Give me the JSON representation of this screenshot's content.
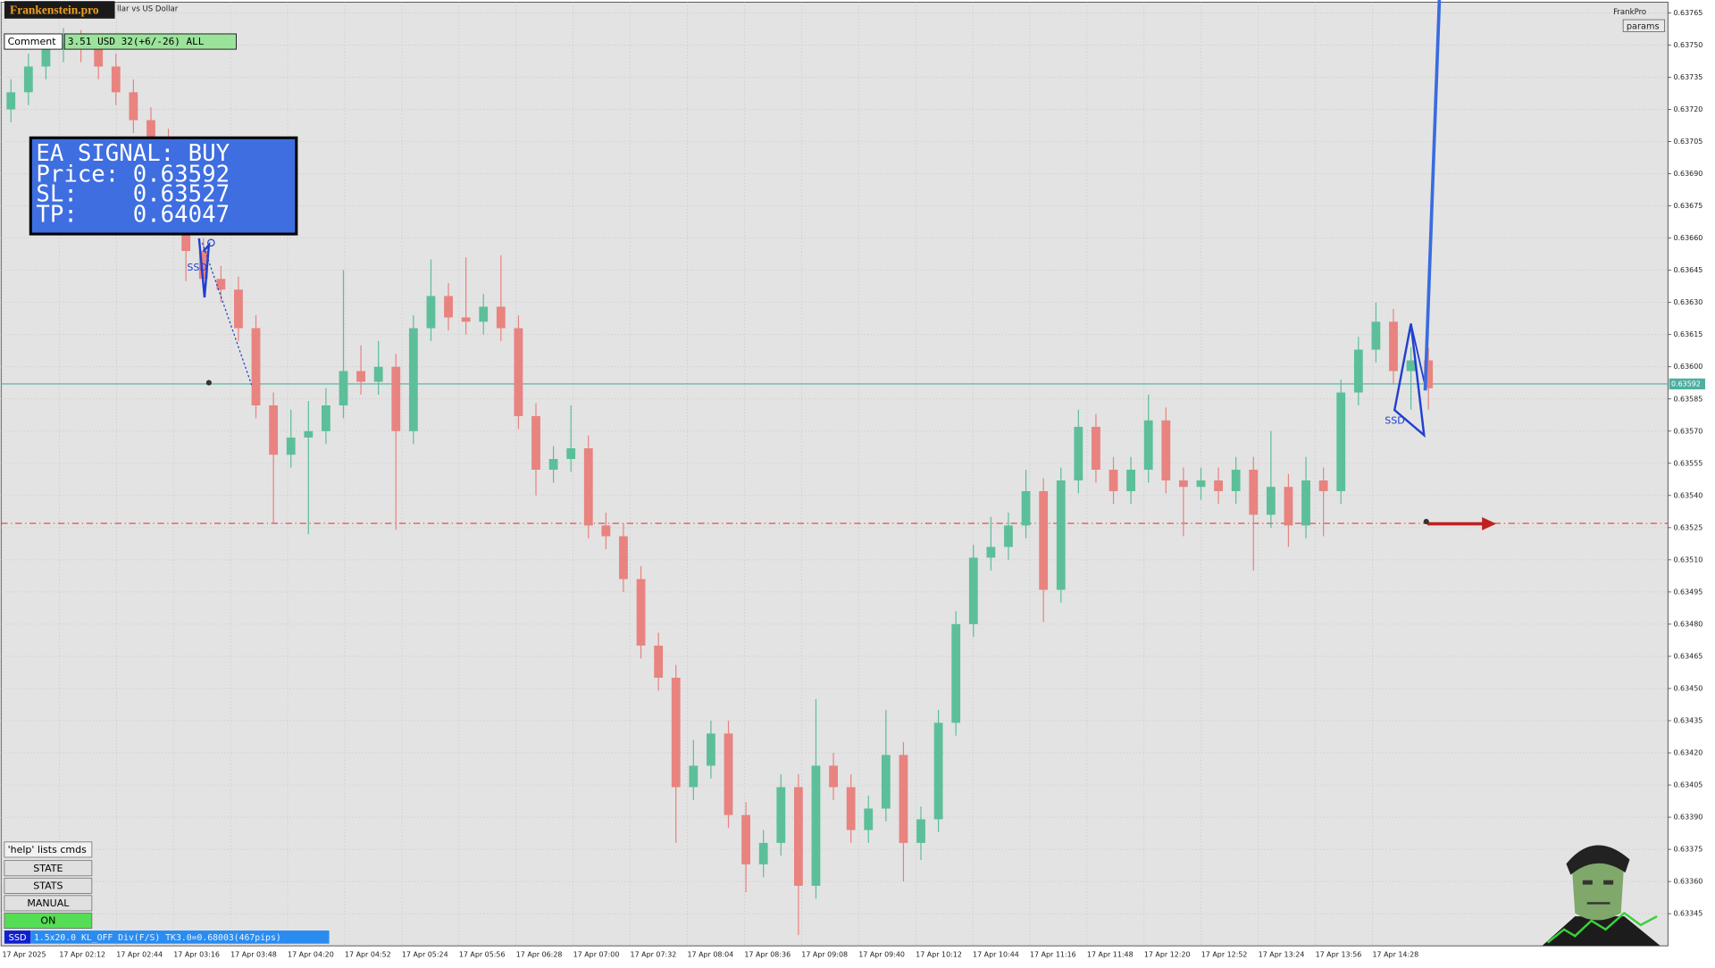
{
  "header": {
    "logo": "Frankenstein.pro",
    "symbol": "llar vs US Dollar",
    "comment_label": "Comment",
    "comment": "3.51 USD 32(+6/-26) ALL",
    "brand": "FrankPro",
    "params": "params"
  },
  "signal": {
    "title": "EA SIGNAL: BUY",
    "lines": [
      "Price: 0.63592",
      "SL:    0.63527",
      "TP:    0.64047"
    ]
  },
  "pattern_labels": [
    "SSD",
    "SSD"
  ],
  "buttons": [
    "'help' lists cmds",
    "STATE",
    "STATS",
    "MANUAL",
    "ON"
  ],
  "status": {
    "tag": "SSD",
    "text": "1.5x20.0 KL_OFF Div(F/S) TK3.0=0.68003(467pips)"
  },
  "chart_data": {
    "type": "candlestick",
    "x_labels": [
      "17 Apr 2025",
      "17 Apr 02:12",
      "17 Apr 02:44",
      "17 Apr 03:16",
      "17 Apr 03:48",
      "17 Apr 04:20",
      "17 Apr 04:52",
      "17 Apr 05:24",
      "17 Apr 05:56",
      "17 Apr 06:28",
      "17 Apr 07:00",
      "17 Apr 07:32",
      "17 Apr 08:04",
      "17 Apr 08:36",
      "17 Apr 09:08",
      "17 Apr 09:40",
      "17 Apr 10:12",
      "17 Apr 10:44",
      "17 Apr 11:16",
      "17 Apr 11:48",
      "17 Apr 12:20",
      "17 Apr 12:52",
      "17 Apr 13:24",
      "17 Apr 13:56",
      "17 Apr 14:28"
    ],
    "open": [
      0.6372,
      0.63728,
      0.6374,
      0.63748,
      0.63751,
      0.63748,
      0.6374,
      0.63728,
      0.63715,
      0.63705,
      0.63684,
      0.63654,
      0.63641,
      0.63636,
      0.63618,
      0.63582,
      0.63559,
      0.63567,
      0.6357,
      0.63582,
      0.63598,
      0.63593,
      0.636,
      0.6357,
      0.63618,
      0.63633,
      0.63623,
      0.63621,
      0.63628,
      0.63618,
      0.63577,
      0.63552,
      0.63557,
      0.63562,
      0.63526,
      0.63521,
      0.63501,
      0.6347,
      0.63455,
      0.63404,
      0.63414,
      0.63429,
      0.63391,
      0.63368,
      0.63378,
      0.63404,
      0.63358,
      0.63414,
      0.63404,
      0.63384,
      0.63394,
      0.63419,
      0.63378,
      0.63389,
      0.63434,
      0.6348,
      0.63511,
      0.63516,
      0.63526,
      0.63542,
      0.63496,
      0.63547,
      0.63572,
      0.63552,
      0.63542,
      0.63552,
      0.63575,
      0.63547,
      0.63544,
      0.63547,
      0.63542,
      0.63552,
      0.63531,
      0.63544,
      0.63526,
      0.63547,
      0.63542,
      0.63588,
      0.63608,
      0.63621,
      0.63598,
      0.63603
    ],
    "high": [
      0.63734,
      0.63746,
      0.63754,
      0.63758,
      0.63757,
      0.63754,
      0.63746,
      0.63734,
      0.63721,
      0.63711,
      0.6369,
      0.6366,
      0.63647,
      0.63642,
      0.63624,
      0.63588,
      0.6358,
      0.63584,
      0.6359,
      0.63645,
      0.6361,
      0.63612,
      0.63606,
      0.63624,
      0.6365,
      0.63639,
      0.63651,
      0.63634,
      0.63652,
      0.63624,
      0.63583,
      0.63563,
      0.63582,
      0.63568,
      0.63532,
      0.63527,
      0.63507,
      0.63476,
      0.63461,
      0.63426,
      0.63435,
      0.63435,
      0.63397,
      0.63384,
      0.6341,
      0.6341,
      0.63445,
      0.6342,
      0.6341,
      0.634,
      0.6344,
      0.63425,
      0.63395,
      0.6344,
      0.63486,
      0.63517,
      0.6353,
      0.63532,
      0.63552,
      0.63548,
      0.63553,
      0.6358,
      0.63578,
      0.63558,
      0.63558,
      0.63587,
      0.63581,
      0.63553,
      0.63553,
      0.63553,
      0.63558,
      0.63558,
      0.6357,
      0.6355,
      0.63558,
      0.63553,
      0.63594,
      0.63614,
      0.6363,
      0.63627,
      0.63609,
      0.63609
    ],
    "low": [
      0.63714,
      0.63722,
      0.63734,
      0.63742,
      0.63742,
      0.63734,
      0.63722,
      0.63709,
      0.63699,
      0.63678,
      0.6364,
      0.63635,
      0.6363,
      0.63612,
      0.63576,
      0.63527,
      0.63553,
      0.63522,
      0.63564,
      0.63576,
      0.63587,
      0.63587,
      0.63524,
      0.63564,
      0.63612,
      0.63617,
      0.63615,
      0.63615,
      0.63612,
      0.63571,
      0.6354,
      0.63546,
      0.63551,
      0.6352,
      0.63515,
      0.63495,
      0.63464,
      0.63449,
      0.63378,
      0.63398,
      0.63408,
      0.63385,
      0.63355,
      0.63362,
      0.63372,
      0.63335,
      0.63352,
      0.63398,
      0.63378,
      0.63378,
      0.63388,
      0.6336,
      0.6337,
      0.63383,
      0.63428,
      0.63474,
      0.63505,
      0.6351,
      0.6352,
      0.63481,
      0.6349,
      0.63541,
      0.63546,
      0.63536,
      0.63536,
      0.63546,
      0.63541,
      0.63521,
      0.63538,
      0.63536,
      0.63536,
      0.63505,
      0.63525,
      0.63516,
      0.6352,
      0.63521,
      0.63536,
      0.63582,
      0.63602,
      0.63592,
      0.6358,
      0.6358
    ],
    "close": [
      0.63728,
      0.6374,
      0.63748,
      0.63751,
      0.63748,
      0.6374,
      0.63728,
      0.63715,
      0.63705,
      0.63684,
      0.63654,
      0.63641,
      0.63636,
      0.63618,
      0.63582,
      0.63559,
      0.63567,
      0.6357,
      0.63582,
      0.63598,
      0.63593,
      0.636,
      0.6357,
      0.63618,
      0.63633,
      0.63623,
      0.63621,
      0.63628,
      0.63618,
      0.63577,
      0.63552,
      0.63557,
      0.63562,
      0.63526,
      0.63521,
      0.63501,
      0.6347,
      0.63455,
      0.63404,
      0.63414,
      0.63429,
      0.63391,
      0.63368,
      0.63378,
      0.63404,
      0.63358,
      0.63414,
      0.63404,
      0.63384,
      0.63394,
      0.63419,
      0.63378,
      0.63389,
      0.63434,
      0.6348,
      0.63511,
      0.63516,
      0.63526,
      0.63542,
      0.63496,
      0.63547,
      0.63572,
      0.63552,
      0.63542,
      0.63552,
      0.63575,
      0.63547,
      0.63544,
      0.63547,
      0.63542,
      0.63552,
      0.63531,
      0.63544,
      0.63526,
      0.63547,
      0.63542,
      0.63588,
      0.63608,
      0.63621,
      0.63598,
      0.63603,
      0.6359
    ],
    "up_color": "#5cbf9a",
    "down_color": "#e8837f",
    "ylim": [
      0.6333,
      0.6377
    ],
    "yticks": [
      0.63765,
      {
        "value": 0.6375,
        "label": "0.63750"
      },
      0.63735,
      {
        "value": 0.6372,
        "label": "0.63720"
      },
      0.63705,
      {
        "value": 0.6369,
        "label": "0.63690"
      },
      0.63675,
      {
        "value": 0.6366,
        "label": "0.63660"
      },
      0.63645,
      {
        "value": 0.6363,
        "label": "0.63630"
      },
      0.63615,
      {
        "value": 0.636,
        "label": "0.63600"
      },
      0.63585,
      {
        "value": 0.6357,
        "label": "0.63570"
      },
      0.63555,
      {
        "value": 0.6354,
        "label": "0.63540"
      },
      0.63525,
      {
        "value": 0.6351,
        "label": "0.63510"
      },
      0.63495,
      {
        "value": 0.6348,
        "label": "0.63480"
      },
      0.63465,
      {
        "value": 0.6345,
        "label": "0.63450"
      },
      0.63435,
      {
        "value": 0.6342,
        "label": "0.63420"
      },
      0.63405,
      {
        "value": 0.6339,
        "label": "0.63390"
      },
      0.63375,
      {
        "value": 0.6336,
        "label": "0.63360"
      },
      0.63345
    ],
    "grid": true,
    "bid_line": {
      "value": 0.63592,
      "color": "#4fb0a0"
    },
    "sl_line": {
      "value": 0.63527,
      "color": "#e04040"
    }
  }
}
